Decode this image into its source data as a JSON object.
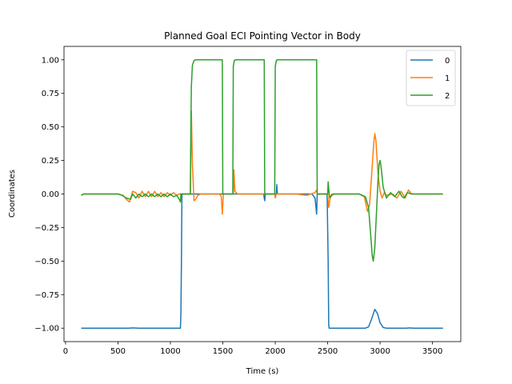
{
  "chart_data": {
    "type": "line",
    "title": "Planned Goal ECI Pointing Vector in Body",
    "xlabel": "Time (s)",
    "ylabel": "Coordinates",
    "xlim": [
      -15,
      3770
    ],
    "ylim": [
      -1.1,
      1.1
    ],
    "xticks": [
      0,
      500,
      1000,
      1500,
      2000,
      2500,
      3000,
      3500
    ],
    "yticks": [
      -1.0,
      -0.75,
      -0.5,
      -0.25,
      0.0,
      0.25,
      0.5,
      0.75,
      1.0
    ],
    "xtick_labels": [
      "0",
      "500",
      "1000",
      "1500",
      "2000",
      "2500",
      "3000",
      "3500"
    ],
    "ytick_labels": [
      "−1.00",
      "−0.75",
      "−0.50",
      "−0.25",
      "0.00",
      "0.25",
      "0.50",
      "0.75",
      "1.00"
    ],
    "grid": false,
    "legend_position": "upper-right",
    "series": [
      {
        "name": "0",
        "color": "#1f77b4",
        "points": [
          [
            150,
            -1.0
          ],
          [
            600,
            -1.0
          ],
          [
            640,
            -0.998
          ],
          [
            700,
            -1.0
          ],
          [
            1095,
            -1.0
          ],
          [
            1100,
            -0.9
          ],
          [
            1105,
            -0.5
          ],
          [
            1110,
            0.0
          ],
          [
            1890,
            0.0
          ],
          [
            1895,
            -0.03
          ],
          [
            1900,
            -0.05
          ],
          [
            1905,
            0.0
          ],
          [
            2010,
            0.0
          ],
          [
            2015,
            0.07
          ],
          [
            2020,
            0.0
          ],
          [
            2350,
            0.0
          ],
          [
            2380,
            -0.03
          ],
          [
            2395,
            -0.15
          ],
          [
            2400,
            0.0
          ],
          [
            2495,
            0.0
          ],
          [
            2505,
            -0.5
          ],
          [
            2510,
            -0.98
          ],
          [
            2515,
            -1.0
          ],
          [
            2860,
            -1.0
          ],
          [
            2890,
            -0.99
          ],
          [
            2920,
            -0.93
          ],
          [
            2950,
            -0.86
          ],
          [
            2975,
            -0.89
          ],
          [
            3000,
            -0.96
          ],
          [
            3030,
            -0.995
          ],
          [
            3060,
            -1.0
          ],
          [
            3250,
            -1.0
          ],
          [
            3280,
            -0.998
          ],
          [
            3320,
            -1.0
          ],
          [
            3600,
            -1.0
          ]
        ]
      },
      {
        "name": "1",
        "color": "#ff7f0e",
        "points": [
          [
            150,
            -0.01
          ],
          [
            170,
            0.0
          ],
          [
            500,
            0.0
          ],
          [
            550,
            -0.01
          ],
          [
            580,
            -0.04
          ],
          [
            610,
            -0.06
          ],
          [
            640,
            0.02
          ],
          [
            670,
            0.01
          ],
          [
            700,
            -0.03
          ],
          [
            730,
            0.02
          ],
          [
            760,
            -0.02
          ],
          [
            790,
            0.02
          ],
          [
            820,
            -0.02
          ],
          [
            850,
            0.02
          ],
          [
            880,
            -0.02
          ],
          [
            910,
            0.01
          ],
          [
            940,
            -0.02
          ],
          [
            970,
            0.01
          ],
          [
            1000,
            -0.01
          ],
          [
            1030,
            0.01
          ],
          [
            1060,
            -0.01
          ],
          [
            1085,
            0.0
          ],
          [
            1100,
            0.0
          ],
          [
            1190,
            0.0
          ],
          [
            1200,
            0.62
          ],
          [
            1210,
            0.22
          ],
          [
            1225,
            -0.05
          ],
          [
            1240,
            -0.04
          ],
          [
            1260,
            -0.01
          ],
          [
            1290,
            0.0
          ],
          [
            1470,
            0.0
          ],
          [
            1485,
            -0.02
          ],
          [
            1495,
            -0.15
          ],
          [
            1505,
            0.0
          ],
          [
            1600,
            0.0
          ],
          [
            1605,
            0.18
          ],
          [
            1615,
            0.02
          ],
          [
            1640,
            0.0
          ],
          [
            1995,
            0.0
          ],
          [
            2000,
            -0.03
          ],
          [
            2010,
            0.0
          ],
          [
            2200,
            0.0
          ],
          [
            2300,
            -0.01
          ],
          [
            2380,
            0.01
          ],
          [
            2395,
            0.03
          ],
          [
            2400,
            0.0
          ],
          [
            2500,
            0.0
          ],
          [
            2510,
            -0.1
          ],
          [
            2525,
            -0.02
          ],
          [
            2540,
            0.0
          ],
          [
            2800,
            0.0
          ],
          [
            2850,
            -0.02
          ],
          [
            2880,
            -0.13
          ],
          [
            2900,
            -0.08
          ],
          [
            2920,
            0.15
          ],
          [
            2940,
            0.38
          ],
          [
            2950,
            0.45
          ],
          [
            2960,
            0.4
          ],
          [
            2980,
            0.15
          ],
          [
            3000,
            0.02
          ],
          [
            3020,
            -0.03
          ],
          [
            3040,
            0.01
          ],
          [
            3060,
            -0.01
          ],
          [
            3120,
            0.0
          ],
          [
            3160,
            -0.03
          ],
          [
            3200,
            0.02
          ],
          [
            3240,
            -0.03
          ],
          [
            3270,
            0.03
          ],
          [
            3300,
            0.0
          ],
          [
            3600,
            0.0
          ]
        ]
      },
      {
        "name": "2",
        "color": "#2ca02c",
        "points": [
          [
            150,
            -0.01
          ],
          [
            170,
            0.0
          ],
          [
            500,
            0.0
          ],
          [
            540,
            -0.01
          ],
          [
            580,
            -0.03
          ],
          [
            620,
            -0.04
          ],
          [
            640,
            0.0
          ],
          [
            670,
            -0.03
          ],
          [
            700,
            0.0
          ],
          [
            730,
            -0.02
          ],
          [
            760,
            0.0
          ],
          [
            790,
            -0.02
          ],
          [
            820,
            0.0
          ],
          [
            850,
            -0.02
          ],
          [
            880,
            0.0
          ],
          [
            910,
            -0.02
          ],
          [
            940,
            0.0
          ],
          [
            970,
            -0.02
          ],
          [
            1000,
            0.0
          ],
          [
            1030,
            -0.02
          ],
          [
            1060,
            -0.01
          ],
          [
            1085,
            -0.04
          ],
          [
            1095,
            -0.06
          ],
          [
            1100,
            0.0
          ],
          [
            1190,
            0.0
          ],
          [
            1195,
            0.5
          ],
          [
            1200,
            0.8
          ],
          [
            1210,
            0.96
          ],
          [
            1225,
            0.995
          ],
          [
            1240,
            1.0
          ],
          [
            1495,
            1.0
          ],
          [
            1500,
            0.0
          ],
          [
            1595,
            0.0
          ],
          [
            1600,
            0.95
          ],
          [
            1610,
            0.995
          ],
          [
            1620,
            1.0
          ],
          [
            1895,
            1.0
          ],
          [
            1900,
            0.0
          ],
          [
            1995,
            0.0
          ],
          [
            2000,
            0.95
          ],
          [
            2010,
            0.995
          ],
          [
            2020,
            1.0
          ],
          [
            2395,
            1.0
          ],
          [
            2400,
            0.0
          ],
          [
            2500,
            0.0
          ],
          [
            2505,
            0.09
          ],
          [
            2515,
            0.0
          ],
          [
            2520,
            -0.03
          ],
          [
            2540,
            -0.01
          ],
          [
            2560,
            0.0
          ],
          [
            2800,
            0.0
          ],
          [
            2860,
            -0.02
          ],
          [
            2890,
            -0.1
          ],
          [
            2910,
            -0.3
          ],
          [
            2925,
            -0.46
          ],
          [
            2935,
            -0.5
          ],
          [
            2950,
            -0.4
          ],
          [
            2965,
            -0.15
          ],
          [
            2980,
            0.1
          ],
          [
            2990,
            0.22
          ],
          [
            3000,
            0.25
          ],
          [
            3010,
            0.2
          ],
          [
            3030,
            0.05
          ],
          [
            3060,
            -0.03
          ],
          [
            3100,
            0.01
          ],
          [
            3140,
            -0.02
          ],
          [
            3180,
            0.02
          ],
          [
            3210,
            -0.02
          ],
          [
            3230,
            -0.03
          ],
          [
            3260,
            0.01
          ],
          [
            3300,
            0.0
          ],
          [
            3600,
            0.0
          ]
        ]
      }
    ]
  }
}
